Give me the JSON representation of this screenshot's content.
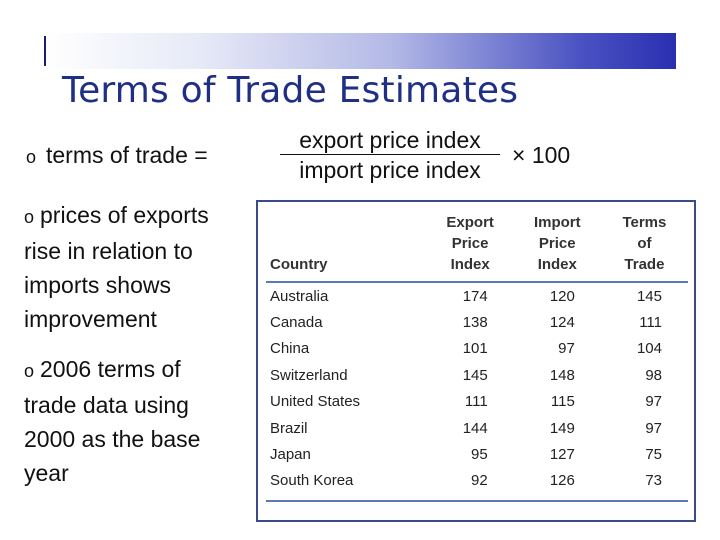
{
  "title": "Terms of Trade Estimates",
  "formula": {
    "bullet": "o",
    "lhs": "terms of trade =",
    "numerator": "export price index",
    "denominator": "import price index",
    "multiplier": "× 100"
  },
  "bullets": [
    {
      "marker": "o",
      "text": "prices of exports rise in relation to imports shows improvement"
    },
    {
      "marker": "o",
      "text": "2006 terms of trade data using 2000 as the base year"
    }
  ],
  "table": {
    "headers": {
      "country": "Country",
      "export": [
        "Export",
        "Price",
        "Index"
      ],
      "import": [
        "Import",
        "Price",
        "Index"
      ],
      "terms": [
        "Terms",
        "of",
        "Trade"
      ]
    },
    "rows": [
      {
        "country": "Australia",
        "export": "174",
        "import": "120",
        "terms": "145"
      },
      {
        "country": "Canada",
        "export": "138",
        "import": "124",
        "terms": "111"
      },
      {
        "country": "China",
        "export": "101",
        "import": "97",
        "terms": "104"
      },
      {
        "country": "Switzerland",
        "export": "145",
        "import": "148",
        "terms": "98"
      },
      {
        "country": "United States",
        "export": "111",
        "import": "115",
        "terms": "97"
      },
      {
        "country": "Brazil",
        "export": "144",
        "import": "149",
        "terms": "97"
      },
      {
        "country": "Japan",
        "export": "95",
        "import": "127",
        "terms": "75"
      },
      {
        "country": "South Korea",
        "export": "92",
        "import": "126",
        "terms": "73"
      }
    ]
  }
}
